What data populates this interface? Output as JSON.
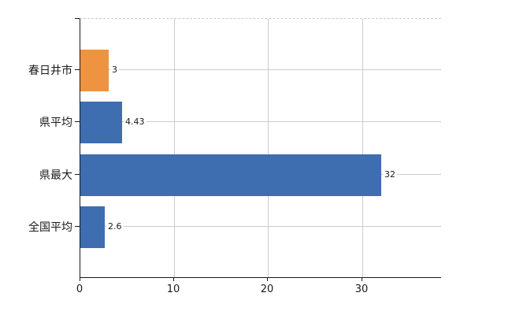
{
  "chart": {
    "background": "#ffffff",
    "axis_color": "#1a1a1a",
    "grid_color": "#cccccc",
    "text_color": "#1a1a1a"
  },
  "chart_data": {
    "type": "bar",
    "orientation": "horizontal",
    "title": "",
    "xlabel": "",
    "ylabel": "",
    "categories": [
      "春日井市",
      "県平均",
      "県最大",
      "全国平均"
    ],
    "values": [
      3,
      4.43,
      32,
      2.6
    ],
    "value_labels": [
      "3",
      "4.43",
      "32",
      "2.6"
    ],
    "bar_colors": [
      "#ee9340",
      "#3f6eb0",
      "#3f6eb0",
      "#3f6eb0"
    ],
    "highlight_index": 0,
    "x_ticks": [
      0,
      10,
      20,
      30
    ],
    "x_tick_labels": [
      "0",
      "10",
      "20",
      "30"
    ],
    "xlim": [
      0,
      38.5
    ],
    "grid": true,
    "legend": false
  }
}
